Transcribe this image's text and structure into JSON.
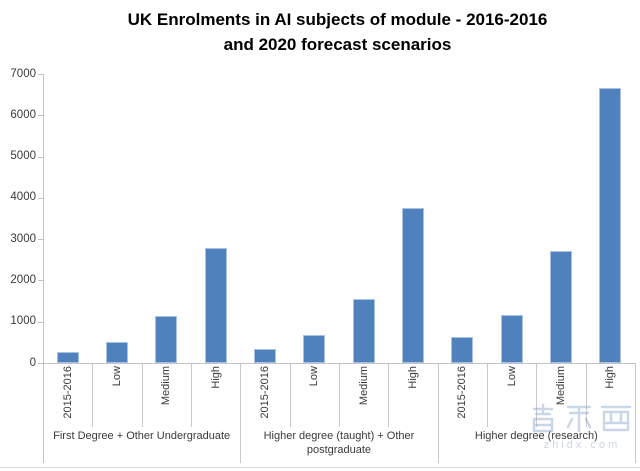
{
  "title": {
    "line1": "UK Enrolments in AI subjects of module - 2016-2016",
    "line2": "and 2020 forecast scenarios"
  },
  "chart_data": {
    "type": "bar",
    "title": "UK Enrolments in AI subjects of module - 2016-2016 and 2020 forecast scenarios",
    "xlabel": "",
    "ylabel": "",
    "ylim": [
      0,
      7000
    ],
    "yticks": [
      0,
      1000,
      2000,
      3000,
      4000,
      5000,
      6000,
      7000
    ],
    "grid": false,
    "legend": "none",
    "bar_color": "#4f81bd",
    "bar_border": "#a9c2e2",
    "axis_color": "#c3c3c3",
    "groups": [
      {
        "label": "First Degree + Other Undergraduate",
        "categories": [
          "2015-2016",
          "Low",
          "Medium",
          "High"
        ],
        "values": [
          275,
          500,
          1150,
          2775
        ]
      },
      {
        "label": "Higher degree (taught) + Other postgraduate",
        "categories": [
          "2015-2016",
          "Low",
          "Medium",
          "High"
        ],
        "values": [
          350,
          690,
          1550,
          3750
        ]
      },
      {
        "label": "Higher degree (research)",
        "categories": [
          "2015-2016",
          "Low",
          "Medium",
          "High"
        ],
        "values": [
          630,
          1175,
          2725,
          6650
        ]
      }
    ]
  },
  "watermark": {
    "logo": "智东西",
    "site": "zhidx.com"
  }
}
